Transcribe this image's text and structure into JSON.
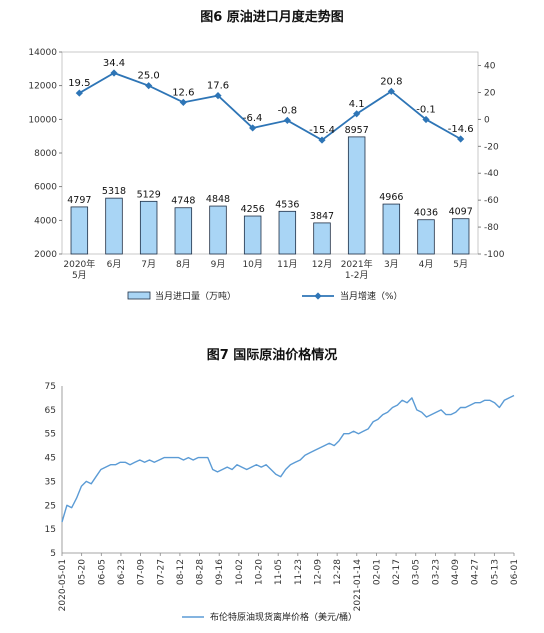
{
  "chart_data": [
    {
      "type": "bar",
      "title": "图6  原油进口月度走势图",
      "categories": [
        "2020年\n5月",
        "6月",
        "7月",
        "8月",
        "9月",
        "10月",
        "11月",
        "12月",
        "2021年\n1-2月",
        "3月",
        "4月",
        "5月"
      ],
      "series": [
        {
          "name": "当月进口量（万吨）",
          "type": "bar",
          "axis": "left",
          "values": [
            4797,
            5318,
            5129,
            4748,
            4848,
            4256,
            4536,
            3847,
            8957,
            4966,
            4036,
            4097
          ],
          "labels": [
            "4797",
            "5318",
            "5129",
            "4748",
            "4848",
            "4256",
            "4536",
            "3847",
            "8957",
            "4966",
            "4036",
            "4097"
          ]
        },
        {
          "name": "当月增速（%）",
          "type": "line",
          "axis": "right",
          "values": [
            19.5,
            34.4,
            25.0,
            12.6,
            17.6,
            -6.4,
            -0.8,
            -15.4,
            4.1,
            20.8,
            -0.1,
            -14.6
          ],
          "labels": [
            "19.5",
            "34.4",
            "25.0",
            "12.6",
            "17.6",
            "-6.4",
            "-0.8",
            "-15.4",
            "4.1",
            "20.8",
            "-0.1",
            "-14.6"
          ]
        }
      ],
      "ylim_left": [
        2000,
        14000
      ],
      "yticks_left": [
        "2000",
        "4000",
        "6000",
        "8000",
        "10000",
        "12000",
        "14000"
      ],
      "ylim_right": [
        -100,
        50
      ],
      "yticks_right": [
        "-100",
        "-80",
        "-60",
        "-40",
        "-20",
        "0",
        "20",
        "40"
      ],
      "legend": [
        "当月进口量（万吨）",
        "当月增速（%）"
      ],
      "legend_position": "bottom",
      "colors": {
        "bar_fill": "#a9d5f5",
        "bar_stroke": "#1f2f45",
        "line": "#2e75b6"
      }
    },
    {
      "type": "line",
      "title": "图7  国际原油价格情况",
      "ylim": [
        5,
        75
      ],
      "yticks": [
        "5",
        "15",
        "25",
        "35",
        "45",
        "55",
        "65",
        "75"
      ],
      "xticks": [
        "2020-05-01",
        "05-20",
        "06-05",
        "06-23",
        "07-09",
        "07-27",
        "08-12",
        "08-28",
        "09-16",
        "10-02",
        "10-20",
        "11-05",
        "11-23",
        "12-09",
        "12-28",
        "2021-01-14",
        "02-01",
        "02-17",
        "03-05",
        "03-23",
        "04-09",
        "04-27",
        "05-13",
        "06-01"
      ],
      "series": [
        {
          "name": "布伦特原油现货离岸价格（美元/桶）",
          "values": [
            18,
            25,
            24,
            28,
            33,
            35,
            34,
            37,
            40,
            41,
            42,
            42,
            43,
            43,
            42,
            43,
            44,
            43,
            44,
            43,
            44,
            45,
            45,
            45,
            45,
            44,
            45,
            44,
            45,
            45,
            45,
            40,
            39,
            40,
            41,
            40,
            42,
            41,
            40,
            41,
            42,
            41,
            42,
            40,
            38,
            37,
            40,
            42,
            43,
            44,
            46,
            47,
            48,
            49,
            50,
            51,
            50,
            52,
            55,
            55,
            56,
            55,
            56,
            57,
            60,
            61,
            63,
            64,
            66,
            67,
            69,
            68,
            70,
            65,
            64,
            62,
            63,
            64,
            65,
            63,
            63,
            64,
            66,
            66,
            67,
            68,
            68,
            69,
            69,
            68,
            66,
            69,
            70,
            71
          ]
        }
      ],
      "legend_position": "bottom",
      "colors": {
        "line": "#5b9bd5"
      }
    }
  ]
}
